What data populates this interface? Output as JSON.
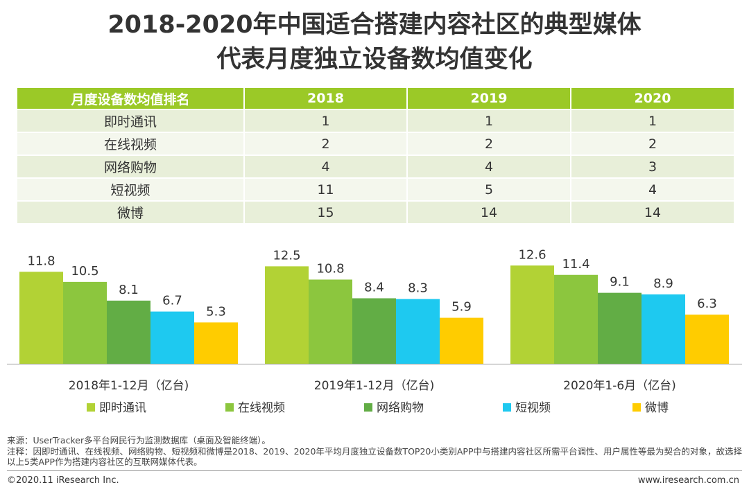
{
  "title": {
    "line1": "2018-2020年中国适合搭建内容社区的典型媒体",
    "line2": "代表月度独立设备数均值变化"
  },
  "table": {
    "headers": [
      "月度设备数均值排名",
      "2018",
      "2019",
      "2020"
    ],
    "rows": [
      {
        "name": "即时通讯",
        "r2018": "1",
        "r2019": "1",
        "r2020": "1"
      },
      {
        "name": "在线视频",
        "r2018": "2",
        "r2019": "2",
        "r2020": "2"
      },
      {
        "name": "网络购物",
        "r2018": "4",
        "r2019": "4",
        "r2020": "3"
      },
      {
        "name": "短视频",
        "r2018": "11",
        "r2019": "5",
        "r2020": "4"
      },
      {
        "name": "微博",
        "r2018": "15",
        "r2019": "14",
        "r2020": "14"
      }
    ]
  },
  "chart_data": {
    "type": "bar",
    "categories": [
      "2018年1-12月（亿台)",
      "2019年1-12月（亿台)",
      "2020年1-6月（亿台)"
    ],
    "series": [
      {
        "name": "即时通讯",
        "color": "#b2d235",
        "values": [
          11.8,
          12.5,
          12.6
        ]
      },
      {
        "name": "在线视频",
        "color": "#8cc63e",
        "values": [
          10.5,
          10.8,
          11.4
        ]
      },
      {
        "name": "网络购物",
        "color": "#62ad45",
        "values": [
          8.1,
          8.4,
          9.1
        ]
      },
      {
        "name": "短视频",
        "color": "#1ec9f0",
        "values": [
          6.7,
          8.3,
          8.9
        ]
      },
      {
        "name": "微博",
        "color": "#ffcc00",
        "values": [
          5.3,
          5.9,
          6.3
        ]
      }
    ],
    "ylim": [
      0,
      14.2
    ],
    "legend_position": "bottom",
    "grid": false
  },
  "footer": {
    "source": "来源：UserTracker多平台网民行为监测数据库（桌面及智能终端）。",
    "note": "注释：因即时通讯、在线视频、网络购物、短视频和微博是2018、2019、2020年平均月度独立设备数TOP20小类别APP中与搭建内容社区所需平台调性、用户属性等最为契合的对象，故选择以上5类APP作为搭建内容社区的互联网媒体代表。",
    "copyright": "©2020.11 iResearch Inc.",
    "website": "www.iresearch.com.cn"
  }
}
